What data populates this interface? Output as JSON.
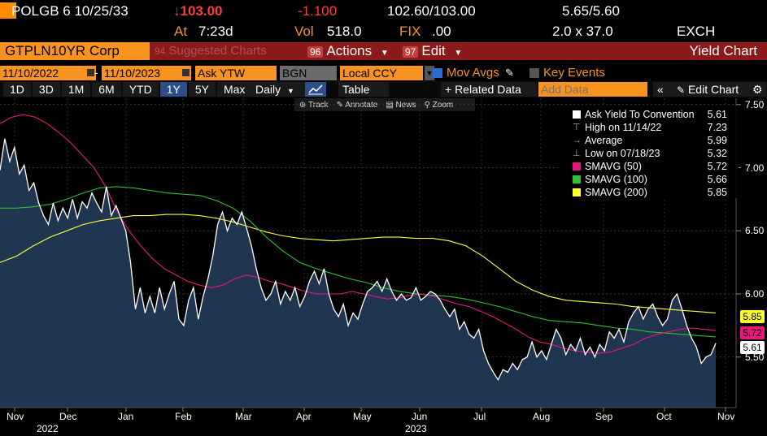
{
  "header": {
    "security": "POLGB 6 10/25/33",
    "last_price": "↓103.00",
    "change": "-1.100",
    "bid_ask": "102.60/103.00",
    "yield_bid_ask": "5.65/5.60",
    "at_label": "At",
    "at_value": "7:23d",
    "vol_label": "Vol",
    "vol_value": "518.0",
    "fix_label": "FIX",
    "fix_value": ".00",
    "size_label": "2.0 x 37.0",
    "exch_label": "EXCH"
  },
  "command_bar": {
    "ticker": "GTPLN10YR Corp",
    "suggested_num": "94",
    "suggested_label": "Suggested Charts",
    "actions_num": "96",
    "actions_label": "Actions",
    "edit_num": "97",
    "edit_label": "Edit",
    "right_title": "Yield Chart"
  },
  "toolbar": {
    "start_date": "11/10/2022",
    "end_date": "11/10/2023",
    "field": "Ask YTW",
    "source": "BGN",
    "currency": "Local CCY",
    "mov_avgs": "Mov Avgs",
    "key_events": "Key Events"
  },
  "periods": {
    "items": [
      "1D",
      "3D",
      "1M",
      "6M",
      "YTD",
      "1Y",
      "5Y",
      "Max"
    ],
    "active": "1Y",
    "frequency": "Daily",
    "table_label": "Table",
    "related": "+ Related Data",
    "add_data_placeholder": "Add Data",
    "edit_chart": "Edit Chart"
  },
  "chart_tools": {
    "track": "Track",
    "annotate": "Annotate",
    "news": "News",
    "zoom": "Zoom"
  },
  "legend": {
    "rows": [
      {
        "name": "Ask Yield To Convention",
        "value": "5.61",
        "color": "#ffffff"
      },
      {
        "name": "High on 11/14/22",
        "value": "7.23",
        "color": ""
      },
      {
        "name": "Average",
        "value": "5.99",
        "color": ""
      },
      {
        "name": "Low on 07/18/23",
        "value": "5.32",
        "color": ""
      },
      {
        "name": "SMAVG (50)",
        "value": "5.72",
        "color": "#e8177d"
      },
      {
        "name": "SMAVG (100)",
        "value": "5.66",
        "color": "#2fbf2f"
      },
      {
        "name": "SMAVG (200)",
        "value": "5.85",
        "color": "#ffff33"
      }
    ]
  },
  "chart_data": {
    "type": "area",
    "ylim": [
      5.1,
      7.55
    ],
    "y_ticks": [
      "5.50",
      "6.00",
      "6.50",
      "7.00",
      "7.50"
    ],
    "x_ticks": [
      "Nov",
      "Dec",
      "Jan",
      "Feb",
      "Mar",
      "Apr",
      "May",
      "Jun",
      "Jul",
      "Aug",
      "Sep",
      "Oct",
      "Nov"
    ],
    "year_labels": [
      "2022",
      "2023"
    ],
    "last_value_tags": [
      {
        "value": "5.85",
        "color": "#ffff33"
      },
      {
        "value": "5.72",
        "color": "#e8177d"
      },
      {
        "value": "5.61",
        "color": "#ffffff"
      }
    ],
    "series": [
      {
        "name": "Ask Yield To Convention",
        "color": "#ffffff",
        "values": [
          6.98,
          7.23,
          7.05,
          7.16,
          6.95,
          7.02,
          6.82,
          6.88,
          6.72,
          6.62,
          6.55,
          6.72,
          6.58,
          6.68,
          6.6,
          6.75,
          6.6,
          6.73,
          6.68,
          6.8,
          6.72,
          6.65,
          6.85,
          6.62,
          6.7,
          6.6,
          6.5,
          6.25,
          5.88,
          6.05,
          5.85,
          5.98,
          5.85,
          6.05,
          5.88,
          6.0,
          6.1,
          5.8,
          5.75,
          5.95,
          6.05,
          5.8,
          5.98,
          6.12,
          6.3,
          6.55,
          6.65,
          6.5,
          6.6,
          6.55,
          6.65,
          6.52,
          6.38,
          6.2,
          6.05,
          5.95,
          6.0,
          6.1,
          5.92,
          6.02,
          5.95,
          6.05,
          5.9,
          5.98,
          6.1,
          6.18,
          6.08,
          6.2,
          6.0,
          5.88,
          5.82,
          5.92,
          5.75,
          5.85,
          5.8,
          5.92,
          6.02,
          6.05,
          6.1,
          6.02,
          6.12,
          6.02,
          5.95,
          6.0,
          5.95,
          5.97,
          6.05,
          5.95,
          5.98,
          6.02,
          6.0,
          5.95,
          5.88,
          5.82,
          5.88,
          5.72,
          5.78,
          5.68,
          5.65,
          5.72,
          5.55,
          5.45,
          5.38,
          5.32,
          5.4,
          5.38,
          5.45,
          5.4,
          5.48,
          5.5,
          5.62,
          5.5,
          5.55,
          5.48,
          5.6,
          5.72,
          5.65,
          5.52,
          5.6,
          5.55,
          5.65,
          5.52,
          5.58,
          5.5,
          5.6,
          5.55,
          5.7,
          5.65,
          5.72,
          5.62,
          5.78,
          5.85,
          5.9,
          5.8,
          5.88,
          5.92,
          5.82,
          5.75,
          5.8,
          5.95,
          6.0,
          5.88,
          5.75,
          5.65,
          5.58,
          5.45,
          5.5,
          5.52,
          5.61
        ]
      },
      {
        "name": "SMAVG (50)",
        "color": "#e8177d",
        "values": [
          7.35,
          7.4,
          7.42,
          7.4,
          7.35,
          7.28,
          7.2,
          7.1,
          7.0,
          6.85,
          6.65,
          6.5,
          6.38,
          6.28,
          6.2,
          6.15,
          6.1,
          6.07,
          6.05,
          6.07,
          6.12,
          6.15,
          6.13,
          6.1,
          6.08,
          6.05,
          6.02,
          6.0,
          6.0,
          6.0,
          6.02,
          6.0,
          5.98,
          5.96,
          5.97,
          5.99,
          6.0,
          5.98,
          5.95,
          5.92,
          5.9,
          5.86,
          5.82,
          5.77,
          5.72,
          5.66,
          5.62,
          5.6,
          5.57,
          5.55,
          5.54,
          5.53,
          5.54,
          5.57,
          5.6,
          5.65,
          5.68,
          5.7,
          5.72,
          5.73,
          5.72,
          5.71
        ]
      },
      {
        "name": "SMAVG (100)",
        "color": "#2fbf2f",
        "values": [
          6.68,
          6.68,
          6.69,
          6.71,
          6.75,
          6.8,
          6.84,
          6.85,
          6.84,
          6.82,
          6.8,
          6.79,
          6.78,
          6.74,
          6.68,
          6.58,
          6.45,
          6.34,
          6.25,
          6.2,
          6.16,
          6.12,
          6.09,
          6.05,
          6.02,
          6.0,
          5.99,
          5.98,
          5.96,
          5.93,
          5.9,
          5.86,
          5.82,
          5.79,
          5.78,
          5.77,
          5.75,
          5.73,
          5.72,
          5.7,
          5.69,
          5.68,
          5.67,
          5.66
        ]
      },
      {
        "name": "SMAVG (200)",
        "color": "#ffff33",
        "values": [
          6.25,
          6.3,
          6.38,
          6.45,
          6.5,
          6.55,
          6.58,
          6.6,
          6.62,
          6.62,
          6.63,
          6.63,
          6.62,
          6.6,
          6.57,
          6.53,
          6.49,
          6.46,
          6.44,
          6.43,
          6.42,
          6.43,
          6.44,
          6.45,
          6.45,
          6.44,
          6.44,
          6.42,
          6.38,
          6.3,
          6.2,
          6.1,
          6.03,
          5.98,
          5.95,
          5.94,
          5.93,
          5.92,
          5.9,
          5.89,
          5.88,
          5.87,
          5.86,
          5.85
        ]
      }
    ]
  }
}
